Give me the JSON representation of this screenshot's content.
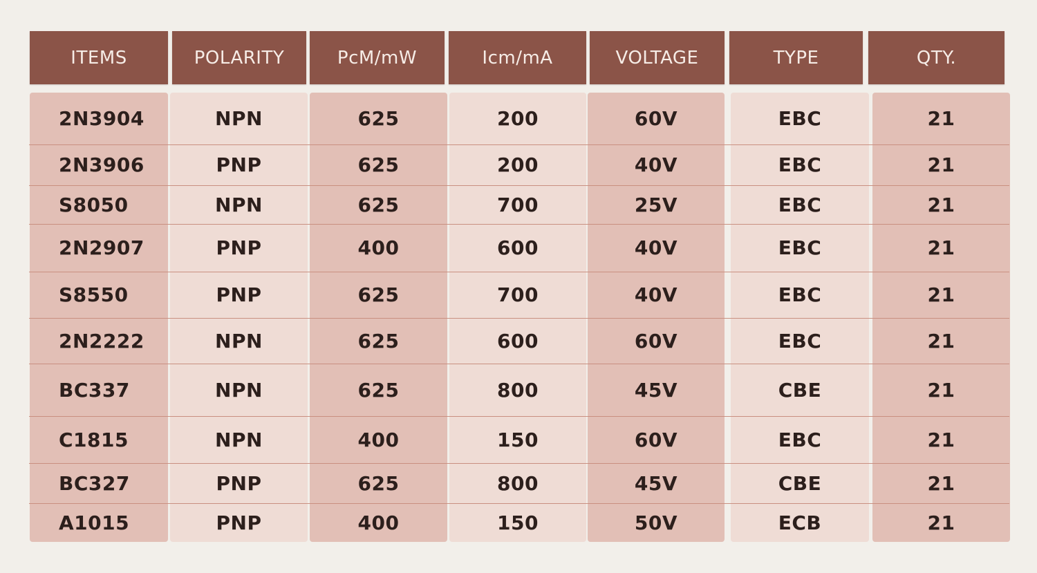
{
  "headers": [
    "ITEMS",
    "POLARITY",
    "PcM/mW",
    "Icm/mA",
    "VOLTAGE",
    "TYPE",
    "QTY."
  ],
  "rows": [
    {
      "item": "2N3904",
      "polarity": "NPN",
      "pcm": "625",
      "icm": "200",
      "voltage": "60V",
      "type": "EBC",
      "qty": "21"
    },
    {
      "item": "2N3906",
      "polarity": "PNP",
      "pcm": "625",
      "icm": "200",
      "voltage": "40V",
      "type": "EBC",
      "qty": "21"
    },
    {
      "item": "S8050",
      "polarity": "NPN",
      "pcm": "625",
      "icm": "700",
      "voltage": "25V",
      "type": "EBC",
      "qty": "21"
    },
    {
      "item": "2N2907",
      "polarity": "PNP",
      "pcm": "400",
      "icm": "600",
      "voltage": "40V",
      "type": "EBC",
      "qty": "21"
    },
    {
      "item": "S8550",
      "polarity": "PNP",
      "pcm": "625",
      "icm": "700",
      "voltage": "40V",
      "type": "EBC",
      "qty": "21"
    },
    {
      "item": "2N2222",
      "polarity": "NPN",
      "pcm": "625",
      "icm": "600",
      "voltage": "60V",
      "type": "EBC",
      "qty": "21"
    },
    {
      "item": "BC337",
      "polarity": "NPN",
      "pcm": "625",
      "icm": "800",
      "voltage": "45V",
      "type": "CBE",
      "qty": "21"
    },
    {
      "item": "C1815",
      "polarity": "NPN",
      "pcm": "400",
      "icm": "150",
      "voltage": "60V",
      "type": "EBC",
      "qty": "21"
    },
    {
      "item": "BC327",
      "polarity": "PNP",
      "pcm": "625",
      "icm": "800",
      "voltage": "45V",
      "type": "CBE",
      "qty": "21"
    },
    {
      "item": "A1015",
      "polarity": "PNP",
      "pcm": "400",
      "icm": "150",
      "voltage": "50V",
      "type": "ECB",
      "qty": "21"
    }
  ],
  "colors": {
    "header": "#8b5448",
    "dark_column": "#e2bfb6",
    "light_column": "#efdcd5",
    "row_line": "#c98f80"
  }
}
